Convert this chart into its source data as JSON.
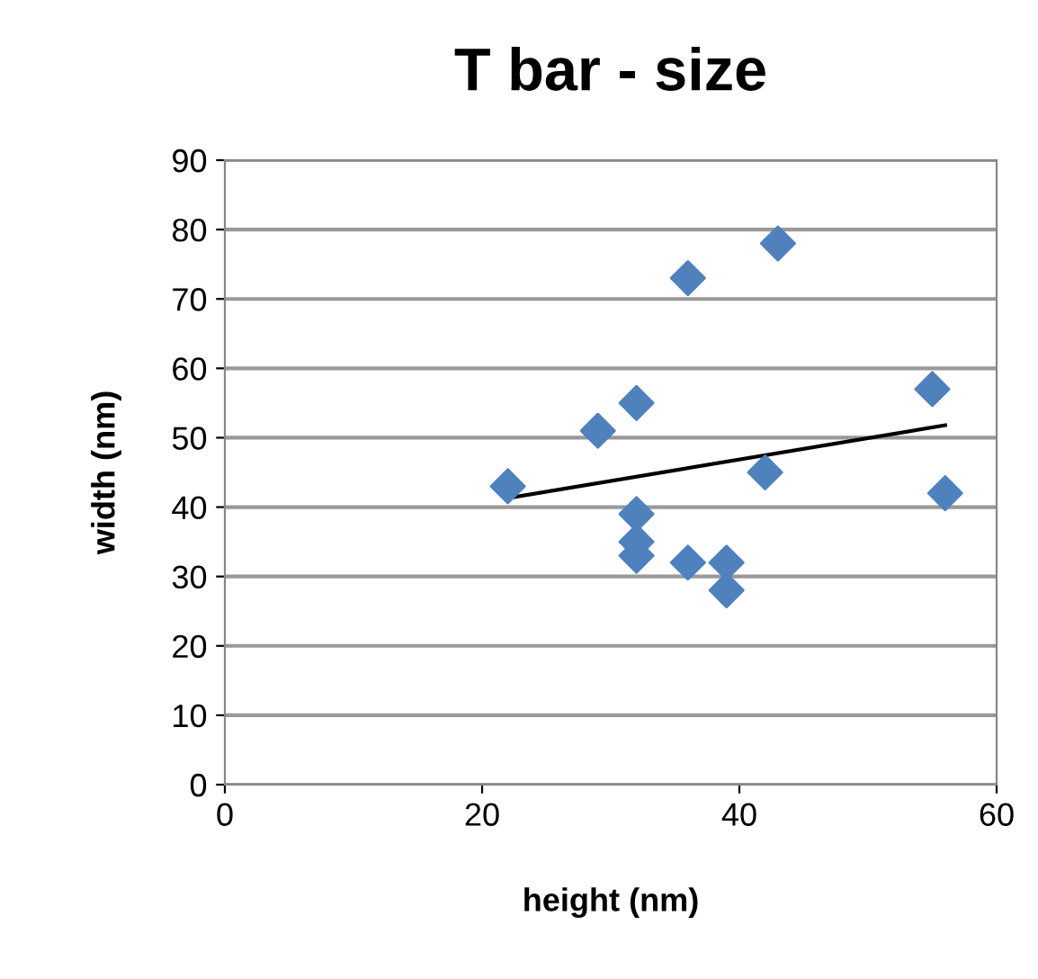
{
  "chart_data": {
    "type": "scatter",
    "title": "T bar - size",
    "xlabel": "height (nm)",
    "ylabel": "width (nm)",
    "xlim": [
      0,
      60
    ],
    "xticks": [
      0,
      20,
      40,
      60
    ],
    "ylim": [
      0,
      90
    ],
    "yticks": [
      0,
      10,
      20,
      30,
      40,
      50,
      60,
      70,
      80,
      90
    ],
    "grid": "y",
    "legend": false,
    "series": [
      {
        "marker": "diamond",
        "color": "#4f81bd",
        "x": [
          22,
          29,
          32,
          36,
          43,
          55,
          42,
          56,
          32,
          32,
          32,
          36,
          39,
          39
        ],
        "values": [
          43,
          51,
          55,
          73,
          78,
          57,
          45,
          42,
          39,
          35,
          33,
          32,
          32,
          28
        ]
      },
      {
        "type": "line",
        "marker": "none",
        "color": "#000000",
        "x": [
          22,
          56
        ],
        "values": [
          41.3,
          51.8
        ]
      }
    ]
  }
}
